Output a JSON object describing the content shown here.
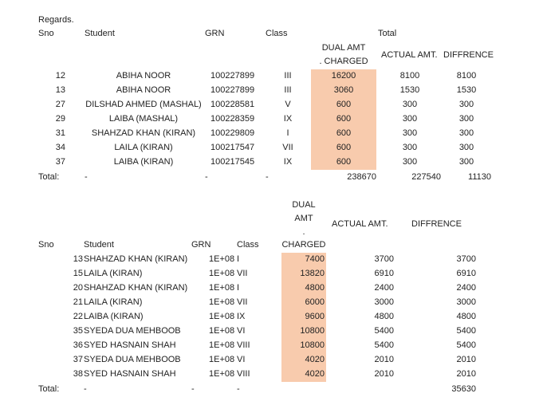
{
  "header": {
    "regards": "Regards."
  },
  "table1": {
    "headers": {
      "sno": "Sno",
      "student": "Student",
      "grn": "GRN",
      "class": "Class",
      "total": "Total",
      "dual_line1": "DUAL AMT",
      "dual_line2": ". CHARGED",
      "actual": "ACTUAL AMT.",
      "diff": "DIFFRENCE"
    },
    "rows": [
      {
        "sno": "12",
        "student": "ABIHA NOOR",
        "grn": "100227899",
        "cls": "III",
        "dual": "16200",
        "actual": "8100",
        "diff": "8100"
      },
      {
        "sno": "13",
        "student": "ABIHA NOOR",
        "grn": "100227899",
        "cls": "III",
        "dual": "3060",
        "actual": "1530",
        "diff": "1530"
      },
      {
        "sno": "27",
        "student": "DILSHAD AHMED (MASHAL)",
        "grn": "100228581",
        "cls": "V",
        "dual": "600",
        "actual": "300",
        "diff": "300"
      },
      {
        "sno": "29",
        "student": "LAIBA (MASHAL)",
        "grn": "100228359",
        "cls": "IX",
        "dual": "600",
        "actual": "300",
        "diff": "300"
      },
      {
        "sno": "31",
        "student": "SHAHZAD KHAN (KIRAN)",
        "grn": "100229809",
        "cls": "I",
        "dual": "600",
        "actual": "300",
        "diff": "300"
      },
      {
        "sno": "34",
        "student": "LAILA (KIRAN)",
        "grn": "100217547",
        "cls": "VII",
        "dual": "600",
        "actual": "300",
        "diff": "300"
      },
      {
        "sno": "37",
        "student": "LAIBA (KIRAN)",
        "grn": "100217545",
        "cls": "IX",
        "dual": "600",
        "actual": "300",
        "diff": "300"
      }
    ],
    "total": {
      "label": "Total:",
      "student": "-",
      "grn": "-",
      "cls": "-",
      "dual": "238670",
      "actual": "227540",
      "diff": "11130"
    }
  },
  "table2": {
    "headers": {
      "dual_line1": "DUAL",
      "dual_line2": "AMT",
      "dual_line3": ".",
      "dual_line4": "CHARGED",
      "actual": "ACTUAL AMT.",
      "diff": "DIFFRENCE",
      "sno": "Sno",
      "student": "Student",
      "grn": "GRN",
      "class": "Class"
    },
    "rows": [
      {
        "sno": "13",
        "student": "SHAHZAD KHAN (KIRAN)",
        "grn": "1E+08",
        "cls": "I",
        "dual": "7400",
        "actual": "3700",
        "diff": "3700"
      },
      {
        "sno": "15",
        "student": "LAILA (KIRAN)",
        "grn": "1E+08",
        "cls": "VII",
        "dual": "13820",
        "actual": "6910",
        "diff": "6910"
      },
      {
        "sno": "20",
        "student": "SHAHZAD KHAN (KIRAN)",
        "grn": "1E+08",
        "cls": "I",
        "dual": "4800",
        "actual": "2400",
        "diff": "2400"
      },
      {
        "sno": "21",
        "student": "LAILA (KIRAN)",
        "grn": "1E+08",
        "cls": "VII",
        "dual": "6000",
        "actual": "3000",
        "diff": "3000"
      },
      {
        "sno": "22",
        "student": "LAIBA (KIRAN)",
        "grn": "1E+08",
        "cls": "IX",
        "dual": "9600",
        "actual": "4800",
        "diff": "4800"
      },
      {
        "sno": "35",
        "student": "SYEDA DUA MEHBOOB",
        "grn": "1E+08",
        "cls": "VI",
        "dual": "10800",
        "actual": "5400",
        "diff": "5400"
      },
      {
        "sno": "36",
        "student": "SYED HASNAIN SHAH",
        "grn": "1E+08",
        "cls": "VIII",
        "dual": "10800",
        "actual": "5400",
        "diff": "5400"
      },
      {
        "sno": "37",
        "student": "SYEDA DUA MEHBOOB",
        "grn": "1E+08",
        "cls": "VI",
        "dual": "4020",
        "actual": "2010",
        "diff": "2010"
      },
      {
        "sno": "38",
        "student": "SYED HASNAIN SHAH",
        "grn": "1E+08",
        "cls": "VIII",
        "dual": "4020",
        "actual": "2010",
        "diff": "2010"
      }
    ],
    "total": {
      "label": "Total:",
      "student": "-",
      "grn": "-",
      "cls": "-",
      "diff": "35630"
    }
  },
  "colors": {
    "highlight": "#f8cbad"
  }
}
